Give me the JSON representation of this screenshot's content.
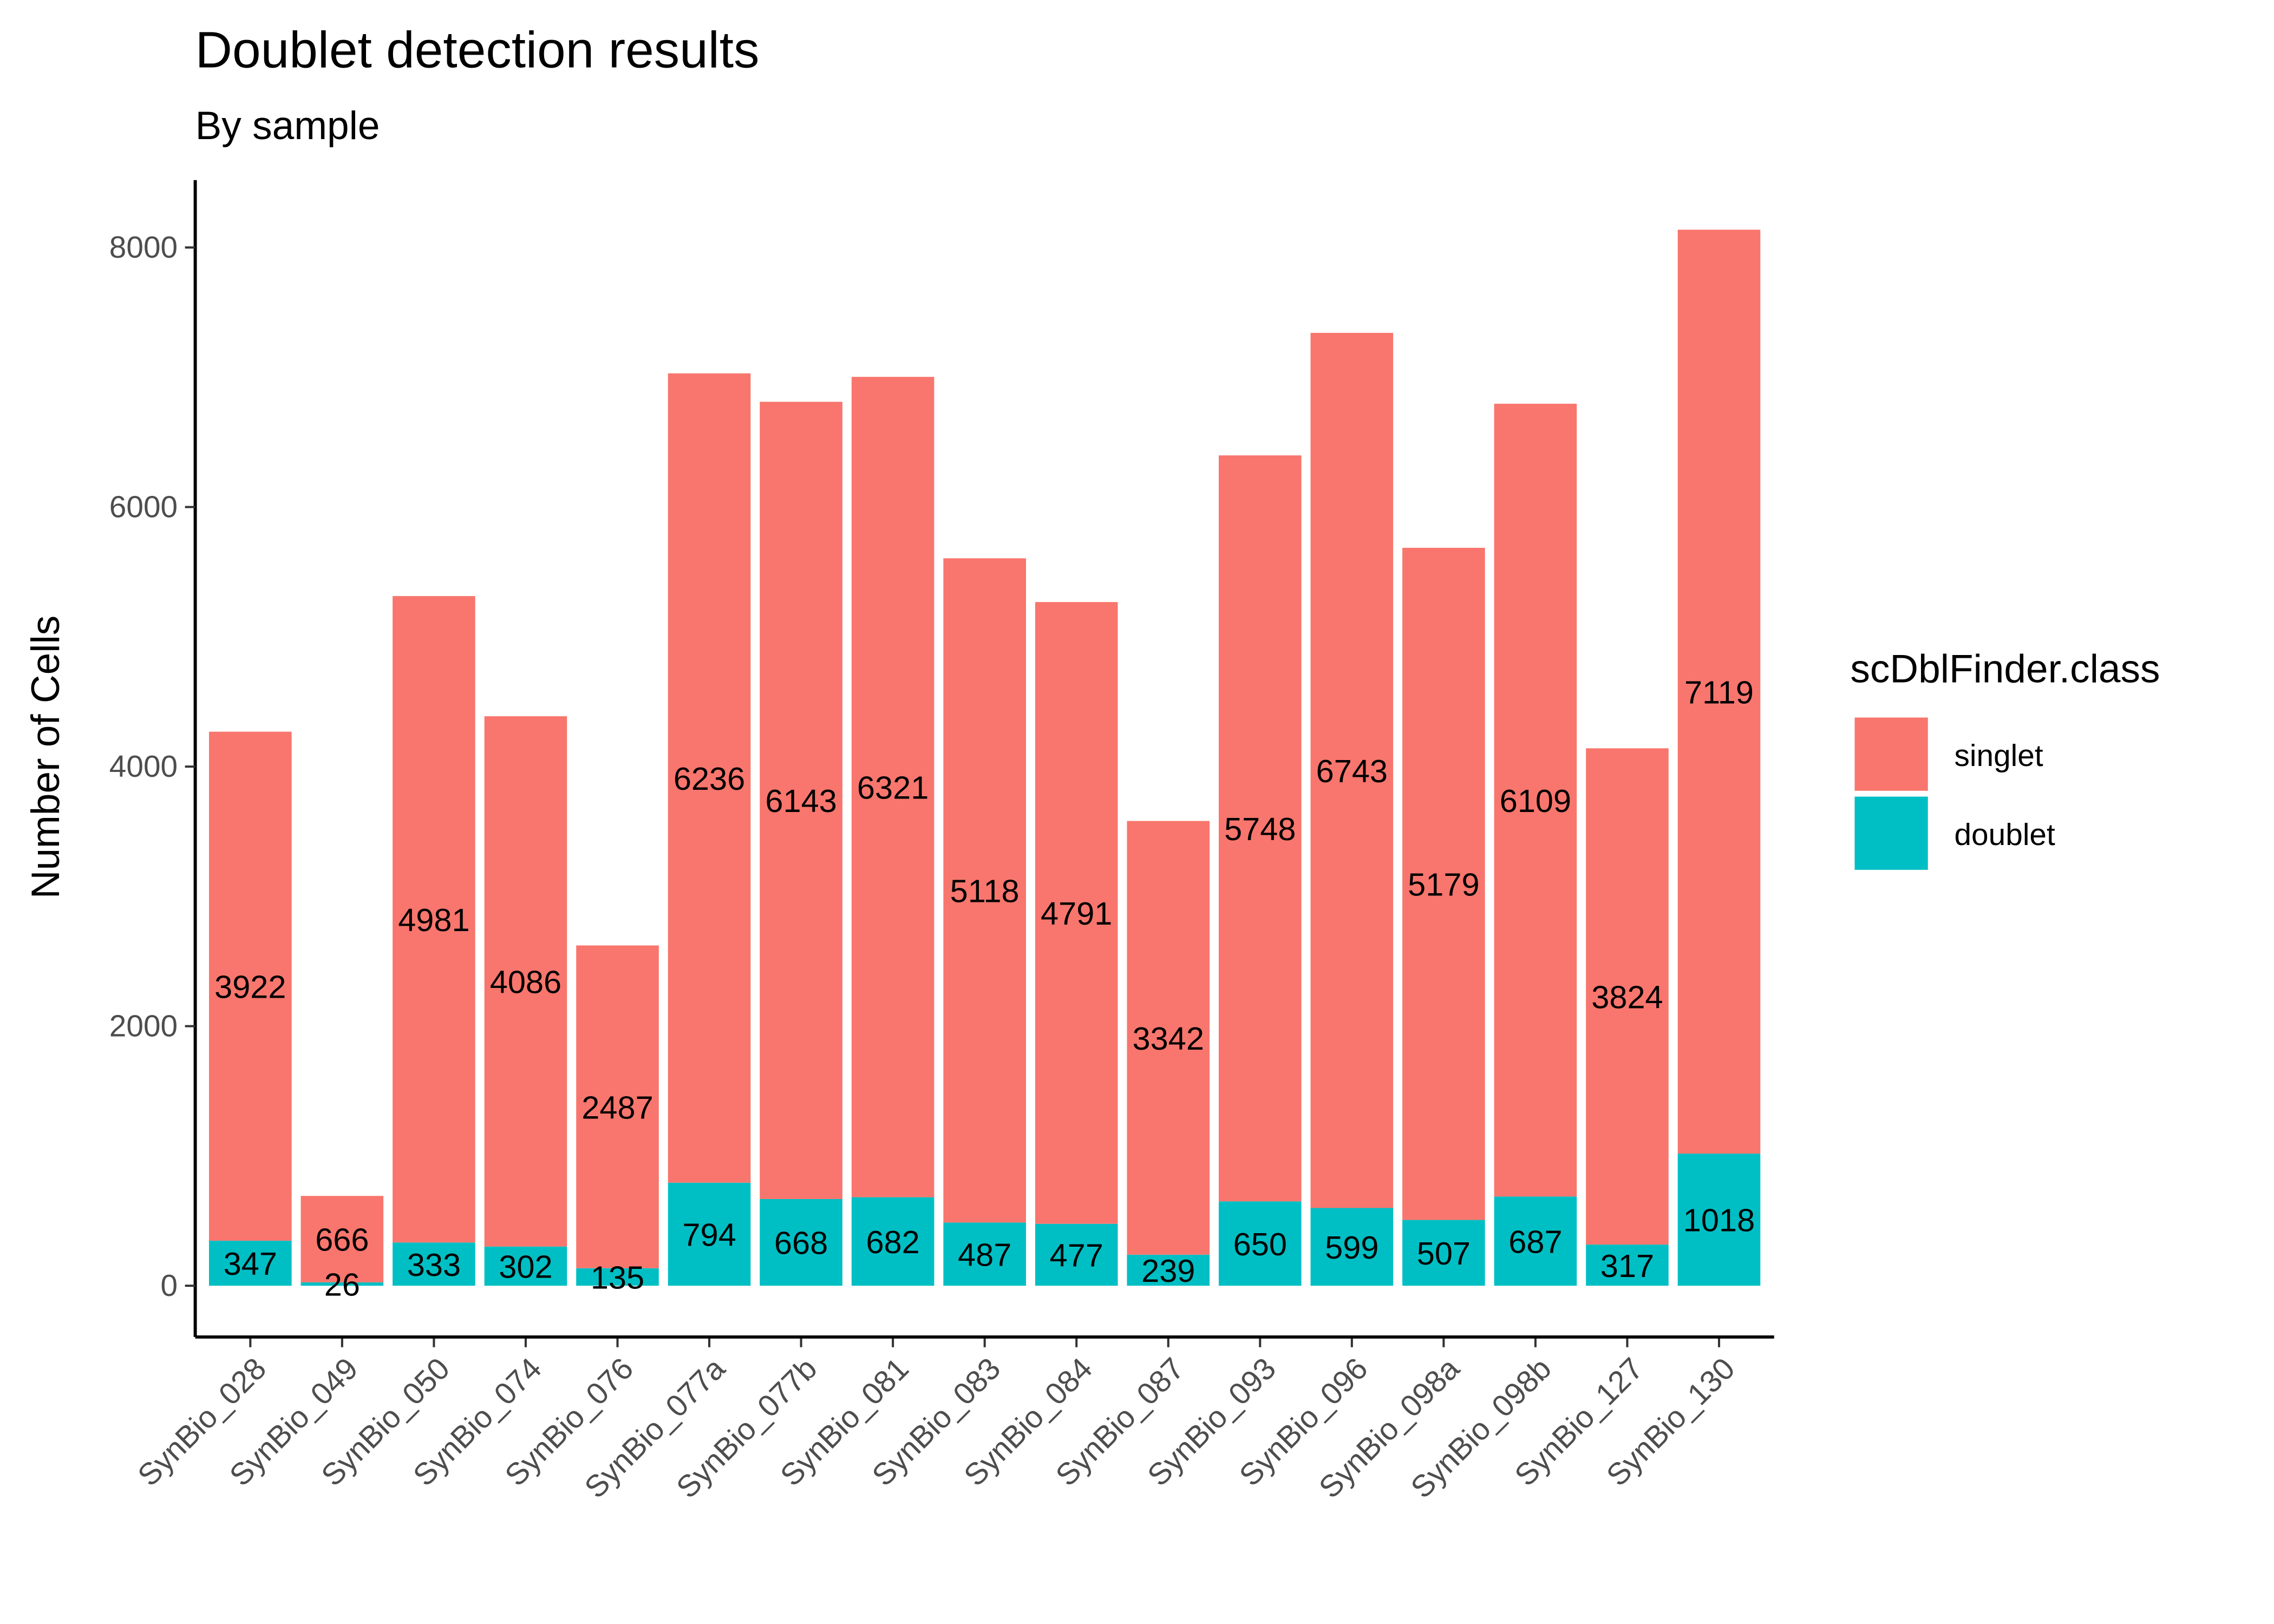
{
  "chart_data": {
    "type": "bar",
    "stacked": true,
    "title": "Doublet detection results",
    "subtitle": "By sample",
    "xlabel": "",
    "ylabel": "Number of Cells",
    "ylim": [
      -400,
      8550
    ],
    "yticks": [
      0,
      2000,
      4000,
      6000,
      8000
    ],
    "grid": false,
    "legend": {
      "title": "scDblFinder.class",
      "position": "right"
    },
    "categories": [
      "SynBio_028",
      "SynBio_049",
      "SynBio_050",
      "SynBio_074",
      "SynBio_076",
      "SynBio_077a",
      "SynBio_077b",
      "SynBio_081",
      "SynBio_083",
      "SynBio_084",
      "SynBio_087",
      "SynBio_093",
      "SynBio_096",
      "SynBio_098a",
      "SynBio_098b",
      "SynBio_127",
      "SynBio_130"
    ],
    "series": [
      {
        "name": "singlet",
        "color": "#F8766D",
        "values": [
          3922,
          666,
          4981,
          4086,
          2487,
          6236,
          6143,
          6321,
          5118,
          4791,
          3342,
          5748,
          6743,
          5179,
          6109,
          3824,
          7119
        ]
      },
      {
        "name": "doublet",
        "color": "#00BFC4",
        "values": [
          347,
          26,
          333,
          302,
          135,
          794,
          668,
          682,
          487,
          477,
          239,
          650,
          599,
          507,
          687,
          317,
          1018
        ]
      }
    ]
  }
}
